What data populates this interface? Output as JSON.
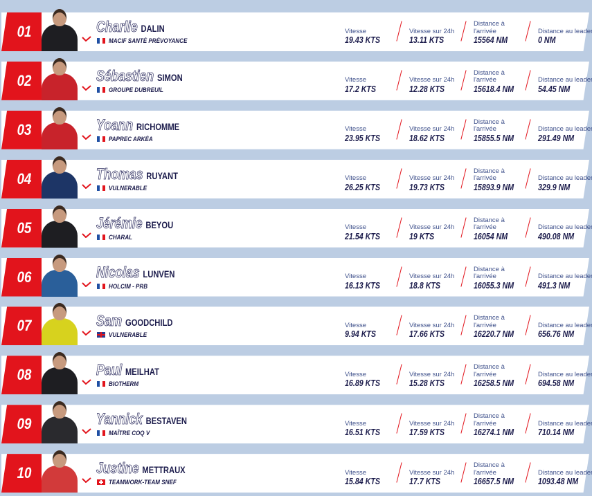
{
  "colors": {
    "accent": "#e2141c",
    "text": "#1c1c4c",
    "background": "#bccde3"
  },
  "labels": {
    "speed": "Vitesse",
    "speed24": "Vitesse sur 24h",
    "dist_finish": "Distance à l'arrivée",
    "dist_leader": "Distance au leader"
  },
  "skippers": [
    {
      "rank": "01",
      "first": "Charlie",
      "last": "DALIN",
      "flag": "FR",
      "team": "MACIF SANTÉ PRÉVOYANCE",
      "speed": "19.43 KTS",
      "speed24": "13.11 KTS",
      "dist_finish": "15564 NM",
      "dist_leader": "0 NM",
      "suit": "#1e1e22"
    },
    {
      "rank": "02",
      "first": "Sébastien",
      "last": "SIMON",
      "flag": "FR",
      "team": "GROUPE DUBREUIL",
      "speed": "17.2 KTS",
      "speed24": "12.28 KTS",
      "dist_finish": "15618.4 NM",
      "dist_leader": "54.45 NM",
      "suit": "#c8232b"
    },
    {
      "rank": "03",
      "first": "Yoann",
      "last": "RICHOMME",
      "flag": "FR",
      "team": "PAPREC ARKÉA",
      "speed": "23.95 KTS",
      "speed24": "18.62 KTS",
      "dist_finish": "15855.5 NM",
      "dist_leader": "291.49 NM",
      "suit": "#c8232b"
    },
    {
      "rank": "04",
      "first": "Thomas",
      "last": "RUYANT",
      "flag": "FR",
      "team": "VULNERABLE",
      "speed": "26.25 KTS",
      "speed24": "19.73 KTS",
      "dist_finish": "15893.9 NM",
      "dist_leader": "329.9 NM",
      "suit": "#1d3566"
    },
    {
      "rank": "05",
      "first": "Jérémie",
      "last": "BEYOU",
      "flag": "FR",
      "team": "CHARAL",
      "speed": "21.54 KTS",
      "speed24": "19 KTS",
      "dist_finish": "16054 NM",
      "dist_leader": "490.08 NM",
      "suit": "#1e1e22"
    },
    {
      "rank": "06",
      "first": "Nicolas",
      "last": "LUNVEN",
      "flag": "FR",
      "team": "HOLCIM - PRB",
      "speed": "16.13 KTS",
      "speed24": "18.8 KTS",
      "dist_finish": "16055.3 NM",
      "dist_leader": "491.3 NM",
      "suit": "#2a5f9a"
    },
    {
      "rank": "07",
      "first": "Sam",
      "last": "GOODCHILD",
      "flag": "GB",
      "team": "VULNERABLE",
      "speed": "9.94 KTS",
      "speed24": "17.66 KTS",
      "dist_finish": "16220.7 NM",
      "dist_leader": "656.76 NM",
      "suit": "#d7d21e"
    },
    {
      "rank": "08",
      "first": "Paul",
      "last": "MEILHAT",
      "flag": "FR",
      "team": "BIOTHERM",
      "speed": "16.89 KTS",
      "speed24": "15.28 KTS",
      "dist_finish": "16258.5 NM",
      "dist_leader": "694.58 NM",
      "suit": "#1e1e22"
    },
    {
      "rank": "09",
      "first": "Yannick",
      "last": "BESTAVEN",
      "flag": "FR",
      "team": "MAÎTRE COQ V",
      "speed": "16.51 KTS",
      "speed24": "17.59 KTS",
      "dist_finish": "16274.1 NM",
      "dist_leader": "710.14 NM",
      "suit": "#2a2a2e"
    },
    {
      "rank": "10",
      "first": "Justine",
      "last": "METTRAUX",
      "flag": "CH",
      "team": "TEAMWORK-TEAM SNEF",
      "speed": "15.84 KTS",
      "speed24": "17.7 KTS",
      "dist_finish": "16657.5 NM",
      "dist_leader": "1093.48 NM",
      "suit": "#d23a3a"
    }
  ]
}
